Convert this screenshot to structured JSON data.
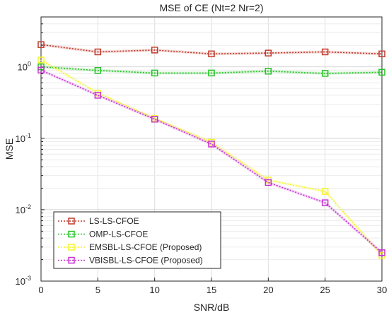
{
  "chart_data": {
    "type": "line",
    "title": "MSE of CE (Nt=2 Nr=2)",
    "xlabel": "SNR/dB",
    "ylabel": "MSE",
    "x": [
      0,
      5,
      10,
      15,
      20,
      25,
      30
    ],
    "xticks": [
      "0",
      "5",
      "10",
      "15",
      "20",
      "25",
      "30"
    ],
    "yscale": "log",
    "ylim": [
      0.001,
      5
    ],
    "yticks": [
      {
        "base": "10",
        "exp": "0"
      },
      {
        "base": "10",
        "exp": "-1"
      },
      {
        "base": "10",
        "exp": "-2"
      },
      {
        "base": "10",
        "exp": "-3"
      }
    ],
    "grid": true,
    "legend_position": "bottom-left",
    "series": [
      {
        "name": "LS-LS-CFOE",
        "color": "#c0392b",
        "values": [
          2.05,
          1.62,
          1.72,
          1.52,
          1.56,
          1.62,
          1.52
        ]
      },
      {
        "name": "OMP-LS-CFOE",
        "color": "#22c322",
        "values": [
          1.0,
          0.89,
          0.82,
          0.82,
          0.87,
          0.81,
          0.84
        ]
      },
      {
        "name": "EMSBL-LS-CFOE (Proposed)",
        "color": "#f5f528",
        "values": [
          1.25,
          0.43,
          0.19,
          0.088,
          0.026,
          0.018,
          0.0023
        ]
      },
      {
        "name": "VBISBL-LS-CFOE (Proposed)",
        "color": "#c832d2",
        "values": [
          0.9,
          0.4,
          0.185,
          0.083,
          0.024,
          0.0125,
          0.0025
        ]
      }
    ]
  }
}
